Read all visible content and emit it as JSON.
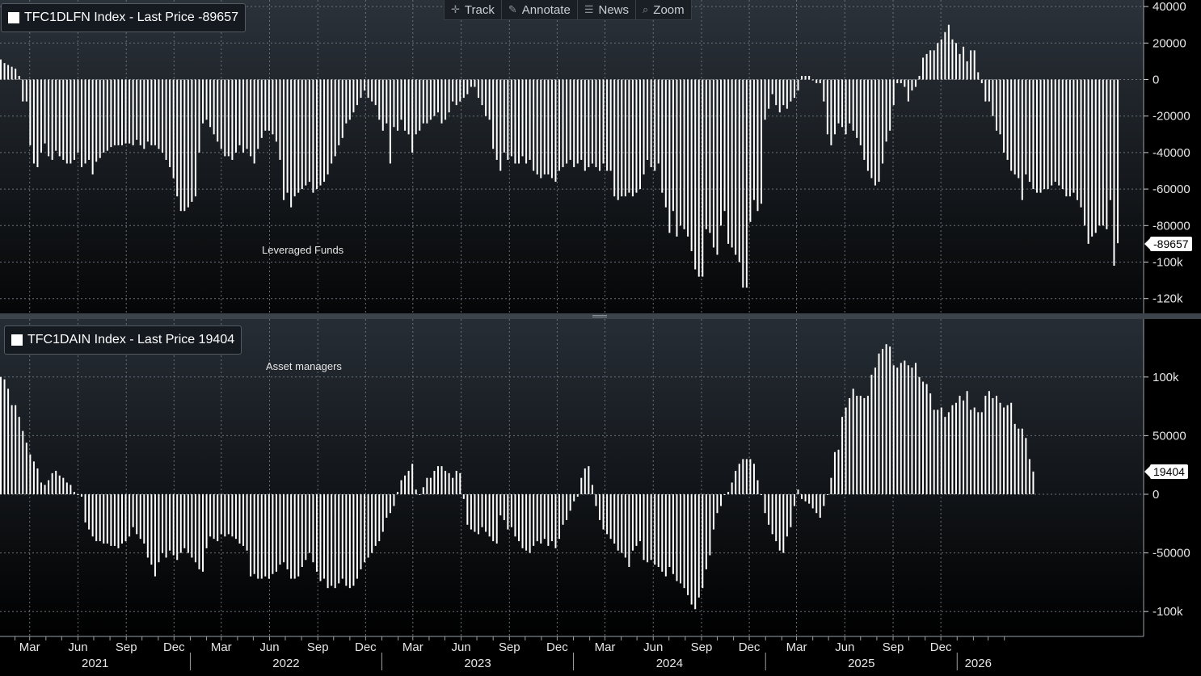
{
  "toolbar": {
    "track": {
      "icon": "crosshair-icon",
      "label": "Track"
    },
    "annotate": {
      "icon": "pencil-icon",
      "label": "Annotate"
    },
    "news": {
      "icon": "news-icon",
      "label": "News"
    },
    "zoom": {
      "icon": "magnifier-icon",
      "label": "Zoom"
    }
  },
  "colors": {
    "bars": "#ffffff",
    "grid": "#6b7178",
    "background_top": "#2b323a",
    "background_bottom": "#000000"
  },
  "x_axis": {
    "months": [
      "Mar",
      "Jun",
      "Sep",
      "Dec",
      "Mar",
      "Jun",
      "Sep",
      "Dec",
      "Mar",
      "Jun",
      "Sep",
      "Dec",
      "Mar",
      "Jun",
      "Sep",
      "Dec",
      "Mar",
      "Jun",
      "Sep",
      "Dec"
    ],
    "years": [
      "2021",
      "2022",
      "2023",
      "2024",
      "2025",
      "2026"
    ]
  },
  "chart_data": [
    {
      "type": "bar",
      "legend": "TFC1DLFN Index - Last Price -89657",
      "annotation": "Leveraged Funds",
      "last_value": -89657,
      "last_label": "-89657",
      "ylim": [
        -125000,
        40000
      ],
      "yticks": [
        40000,
        20000,
        0,
        -20000,
        -40000,
        -60000,
        -80000,
        -100000,
        -120000
      ],
      "ytick_labels": [
        "40000",
        "20000",
        "0",
        "-20000",
        "-40000",
        "-60000",
        "-80000",
        "-100k",
        "-120k"
      ],
      "x_start": "2021-01-05",
      "x_step_days": 7,
      "values": [
        11000,
        9000,
        8000,
        7000,
        6000,
        2000,
        -12000,
        -12000,
        -36000,
        -46000,
        -48000,
        -40000,
        -35000,
        -42000,
        -44000,
        -39000,
        -42000,
        -44000,
        -46000,
        -46000,
        -44000,
        -40000,
        -48000,
        -46000,
        -44000,
        -52000,
        -45000,
        -43000,
        -40000,
        -39000,
        -37000,
        -36000,
        -36000,
        -36000,
        -35000,
        -35000,
        -36000,
        -33000,
        -36000,
        -38000,
        -34000,
        -36000,
        -36000,
        -38000,
        -40000,
        -44000,
        -48000,
        -54000,
        -64000,
        -72000,
        -72000,
        -70000,
        -67000,
        -64000,
        -40000,
        -24000,
        -22000,
        -26000,
        -30000,
        -34000,
        -38000,
        -42000,
        -42000,
        -44000,
        -40000,
        -36000,
        -40000,
        -38000,
        -42000,
        -46000,
        -38000,
        -32000,
        -28000,
        -28000,
        -30000,
        -34000,
        -44000,
        -66000,
        -62000,
        -70000,
        -64000,
        -62000,
        -60000,
        -58000,
        -56000,
        -62000,
        -60000,
        -58000,
        -56000,
        -52000,
        -46000,
        -42000,
        -36000,
        -32000,
        -24000,
        -22000,
        -18000,
        -14000,
        -10000,
        -6000,
        -10000,
        -12000,
        -14000,
        -22000,
        -28000,
        -24000,
        -46000,
        -26000,
        -28000,
        -22000,
        -28000,
        -30000,
        -40000,
        -30000,
        -28000,
        -24000,
        -24000,
        -22000,
        -20000,
        -18000,
        -24000,
        -22000,
        -18000,
        -12000,
        -14000,
        -12000,
        -10000,
        -8000,
        -4000,
        -4000,
        -10000,
        -14000,
        -20000,
        -22000,
        -38000,
        -44000,
        -50000,
        -40000,
        -44000,
        -42000,
        -46000,
        -46000,
        -42000,
        -46000,
        -44000,
        -50000,
        -52000,
        -54000,
        -52000,
        -52000,
        -54000,
        -56000,
        -50000,
        -48000,
        -46000,
        -44000,
        -48000,
        -46000,
        -44000,
        -50000,
        -48000,
        -46000,
        -48000,
        -50000,
        -46000,
        -50000,
        -50000,
        -64000,
        -66000,
        -64000,
        -64000,
        -62000,
        -64000,
        -62000,
        -60000,
        -52000,
        -44000,
        -48000,
        -50000,
        -46000,
        -62000,
        -70000,
        -84000,
        -72000,
        -86000,
        -80000,
        -82000,
        -86000,
        -94000,
        -104000,
        -108000,
        -108000,
        -82000,
        -84000,
        -92000,
        -96000,
        -80000,
        -72000,
        -90000,
        -92000,
        -96000,
        -100000,
        -114000,
        -114000,
        -78000,
        -66000,
        -72000,
        -68000,
        -22000,
        -16000,
        -8000,
        -14000,
        -18000,
        -14000,
        -16000,
        -12000,
        -10000,
        -6000,
        2000,
        2000,
        2000,
        0,
        -2000,
        -2000,
        -12000,
        -30000,
        -36000,
        -30000,
        -24000,
        -26000,
        -30000,
        -24000,
        -28000,
        -32000,
        -36000,
        -44000,
        -50000,
        -54000,
        -58000,
        -56000,
        -46000,
        -34000,
        -28000,
        -14000,
        -2000,
        -2000,
        -4000,
        -12000,
        -6000,
        -4000,
        2000,
        12000,
        14000,
        16000,
        16000,
        20000,
        22000,
        26000,
        30000,
        22000,
        20000,
        14000,
        18000,
        10000,
        16000,
        16000,
        4000,
        -2000,
        -12000,
        -12000,
        -20000,
        -28000,
        -30000,
        -40000,
        -44000,
        -50000,
        -52000,
        -54000,
        -66000,
        -52000,
        -56000,
        -60000,
        -62000,
        -62000,
        -60000,
        -60000,
        -58000,
        -56000,
        -58000,
        -60000,
        -64000,
        -64000,
        -62000,
        -66000,
        -70000,
        -80000,
        -90000,
        -86000,
        -84000,
        -80000,
        -80000,
        -82000,
        -66000,
        -102000,
        -89657
      ]
    },
    {
      "type": "bar",
      "legend": "TFC1DAIN Index - Last Price 19404",
      "annotation": "Asset managers",
      "last_value": 19404,
      "last_label": "19404",
      "ylim": [
        -120000,
        150000
      ],
      "yticks": [
        100000,
        50000,
        0,
        -50000,
        -100000
      ],
      "ytick_labels": [
        "100k",
        "50000",
        "0",
        "-50000",
        "-100k"
      ],
      "x_start": "2021-01-05",
      "x_step_days": 7,
      "values": [
        100000,
        98000,
        90000,
        76000,
        76000,
        66000,
        54000,
        44000,
        34000,
        28000,
        22000,
        10000,
        8000,
        12000,
        18000,
        20000,
        16000,
        14000,
        10000,
        8000,
        2000,
        0,
        -2000,
        -24000,
        -30000,
        -36000,
        -40000,
        -40000,
        -42000,
        -42000,
        -44000,
        -44000,
        -46000,
        -42000,
        -40000,
        -36000,
        -28000,
        -34000,
        -38000,
        -42000,
        -54000,
        -60000,
        -70000,
        -58000,
        -50000,
        -54000,
        -48000,
        -52000,
        -56000,
        -50000,
        -46000,
        -50000,
        -54000,
        -58000,
        -64000,
        -66000,
        -46000,
        -36000,
        -38000,
        -40000,
        -34000,
        -36000,
        -34000,
        -36000,
        -38000,
        -42000,
        -44000,
        -48000,
        -70000,
        -68000,
        -72000,
        -72000,
        -70000,
        -72000,
        -68000,
        -66000,
        -60000,
        -58000,
        -64000,
        -72000,
        -72000,
        -70000,
        -62000,
        -56000,
        -50000,
        -58000,
        -66000,
        -74000,
        -72000,
        -80000,
        -78000,
        -80000,
        -76000,
        -72000,
        -78000,
        -80000,
        -78000,
        -72000,
        -64000,
        -58000,
        -54000,
        -50000,
        -44000,
        -40000,
        -32000,
        -20000,
        -16000,
        -10000,
        2000,
        12000,
        16000,
        20000,
        26000,
        4000,
        0,
        6000,
        14000,
        14000,
        20000,
        24000,
        24000,
        20000,
        18000,
        14000,
        20000,
        18000,
        -4000,
        -26000,
        -30000,
        -32000,
        -34000,
        -28000,
        -32000,
        -36000,
        -40000,
        -42000,
        -18000,
        -22000,
        -30000,
        -28000,
        -36000,
        -40000,
        -46000,
        -48000,
        -50000,
        -44000,
        -40000,
        -42000,
        -38000,
        -44000,
        -40000,
        -46000,
        -38000,
        -26000,
        -22000,
        -14000,
        -6000,
        -2000,
        14000,
        22000,
        24000,
        8000,
        -10000,
        -22000,
        -30000,
        -34000,
        -38000,
        -42000,
        -48000,
        -50000,
        -54000,
        -62000,
        -48000,
        -44000,
        -40000,
        -56000,
        -58000,
        -56000,
        -60000,
        -62000,
        -66000,
        -70000,
        -62000,
        -68000,
        -74000,
        -76000,
        -80000,
        -86000,
        -94000,
        -98000,
        -88000,
        -80000,
        -64000,
        -52000,
        -30000,
        -16000,
        -10000,
        0,
        2000,
        10000,
        20000,
        26000,
        30000,
        30000,
        30000,
        26000,
        12000,
        0,
        -16000,
        -26000,
        -34000,
        -40000,
        -48000,
        -50000,
        -36000,
        -28000,
        -10000,
        4000,
        -4000,
        -6000,
        -8000,
        -12000,
        -16000,
        -20000,
        -10000,
        0,
        14000,
        36000,
        38000,
        66000,
        74000,
        82000,
        90000,
        84000,
        84000,
        82000,
        84000,
        102000,
        108000,
        120000,
        124000,
        128000,
        126000,
        110000,
        108000,
        112000,
        114000,
        110000,
        108000,
        112000,
        100000,
        96000,
        94000,
        86000,
        72000,
        72000,
        74000,
        66000,
        70000,
        76000,
        78000,
        84000,
        80000,
        88000,
        72000,
        74000,
        70000,
        70000,
        84000,
        88000,
        82000,
        84000,
        78000,
        74000,
        76000,
        78000,
        60000,
        56000,
        56000,
        48000,
        30000,
        19404
      ]
    }
  ]
}
